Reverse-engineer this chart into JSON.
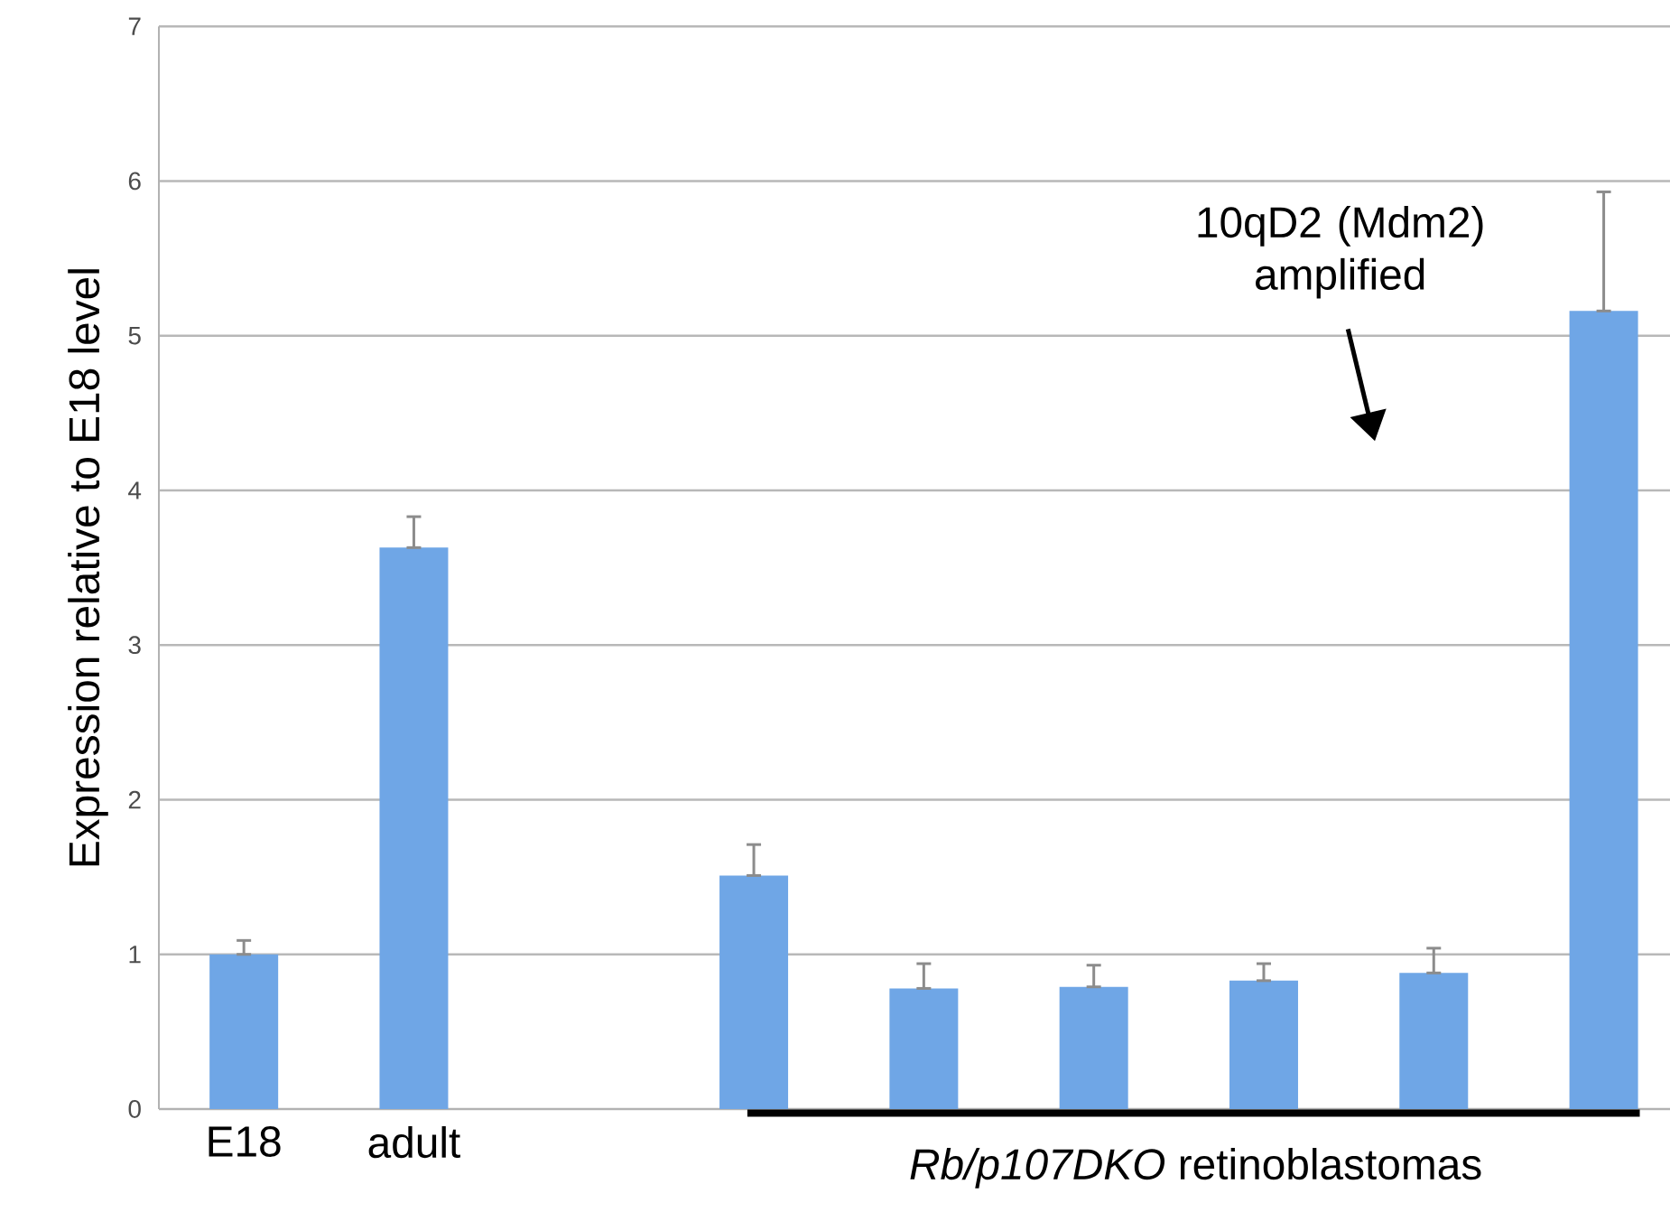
{
  "chart_data": {
    "type": "bar",
    "ylabel": "Expression relative to E18 level",
    "categories": [
      "E18",
      "adult",
      null,
      null,
      null,
      null,
      null,
      null,
      null
    ],
    "values": [
      1.0,
      3.63,
      null,
      1.51,
      0.78,
      0.79,
      0.83,
      0.88,
      5.16
    ],
    "errors": [
      [
        1.0,
        1.09
      ],
      [
        3.63,
        3.83
      ],
      null,
      [
        1.51,
        1.71
      ],
      [
        0.78,
        0.94
      ],
      [
        0.79,
        0.93
      ],
      [
        0.83,
        0.94
      ],
      [
        0.88,
        1.04
      ],
      [
        5.16,
        5.93
      ]
    ],
    "color": "#6fa6e6",
    "ylim": [
      0,
      7
    ],
    "yticks": [
      0,
      1,
      2,
      3,
      4,
      5,
      6,
      7
    ],
    "grid": "y",
    "annotations": [
      "10qD2 (Mdm2) amplified",
      "*Rb/p107DKO* retinoblastomas"
    ]
  }
}
